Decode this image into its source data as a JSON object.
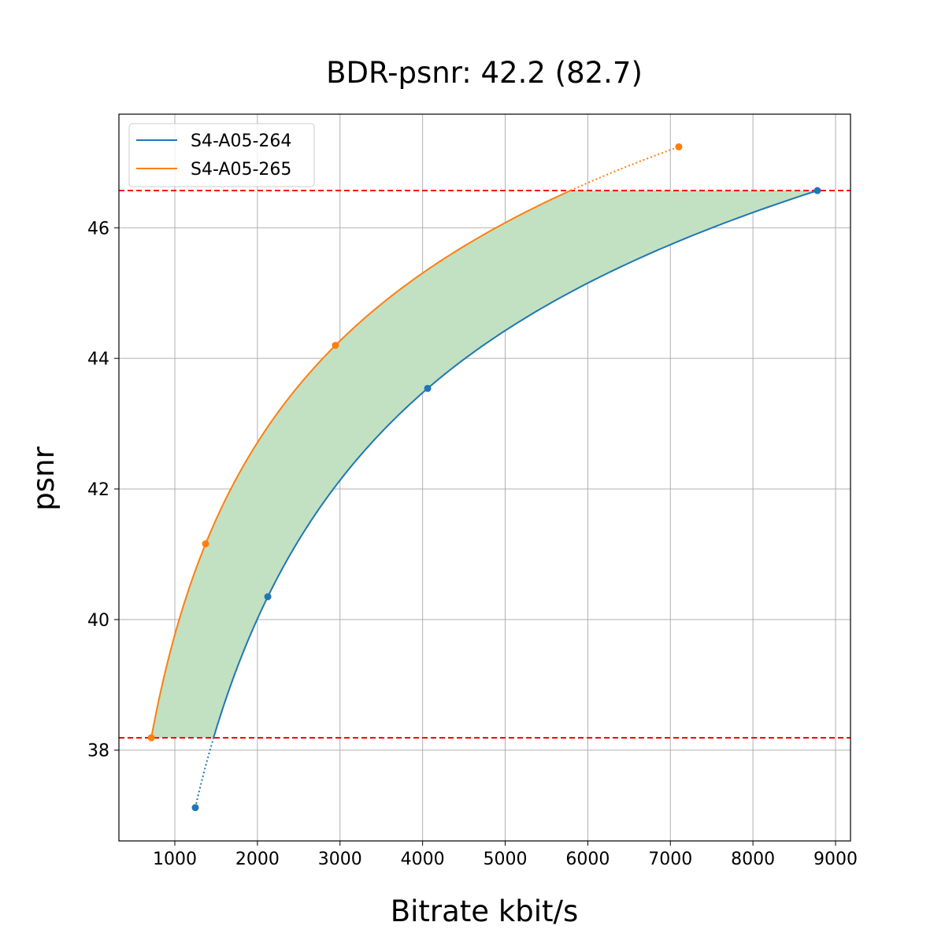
{
  "chart_data": {
    "type": "line",
    "title": "BDR-psnr: 42.2 (82.7)",
    "xlabel": "Bitrate kbit/s",
    "ylabel": "psnr",
    "xlim": [
      323,
      9181
    ],
    "ylim": [
      36.61,
      47.74
    ],
    "xticks": [
      1000,
      2000,
      3000,
      4000,
      5000,
      6000,
      7000,
      8000,
      9000
    ],
    "yticks": [
      38,
      40,
      42,
      44,
      46
    ],
    "grid": true,
    "legend_position": "top-left",
    "series": [
      {
        "name": "S4-A05-264",
        "color": "#1f77b4",
        "x": [
          1248,
          2126,
          4061,
          8780
        ],
        "y": [
          37.12,
          40.35,
          43.54,
          46.57
        ]
      },
      {
        "name": "S4-A05-265",
        "color": "#ff7f0e",
        "x": [
          715,
          1373,
          2945,
          7102
        ],
        "y": [
          38.19,
          41.16,
          44.2,
          47.24
        ]
      }
    ],
    "reference_lines": {
      "color": "#ff0000",
      "style": "dashed",
      "y": [
        38.19,
        46.57
      ]
    },
    "fill_between": {
      "color": "#c2e0c2",
      "y_range": [
        38.19,
        46.57
      ]
    }
  }
}
